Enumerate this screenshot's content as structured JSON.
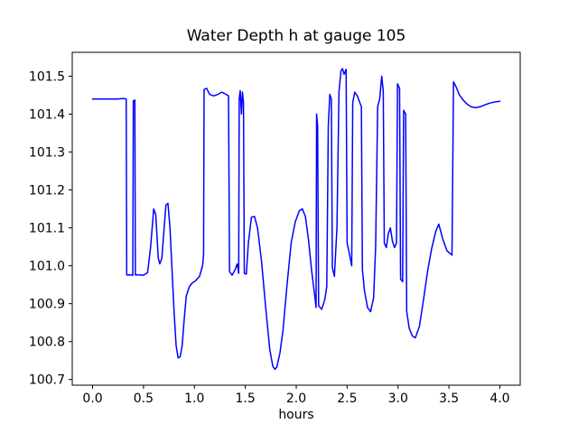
{
  "chart_data": {
    "type": "line",
    "title": "Water Depth h at gauge 105",
    "xlabel": "hours",
    "ylabel": "",
    "line_color": "#0000ff",
    "grid": false,
    "legend": null,
    "xlim": [
      -0.2,
      4.2
    ],
    "ylim": [
      100.685,
      101.563
    ],
    "xtick_values": [
      0.0,
      0.5,
      1.0,
      1.5,
      2.0,
      2.5,
      3.0,
      3.5,
      4.0
    ],
    "xtick_labels": [
      "0.0",
      "0.5",
      "1.0",
      "1.5",
      "2.0",
      "2.5",
      "3.0",
      "3.5",
      "4.0"
    ],
    "ytick_values": [
      100.7,
      100.8,
      100.9,
      101.0,
      101.1,
      101.2,
      101.3,
      101.4,
      101.5
    ],
    "ytick_labels": [
      "100.7",
      "100.8",
      "100.9",
      "101.0",
      "101.1",
      "101.2",
      "101.3",
      "101.4",
      "101.5"
    ],
    "points": [
      [
        0.0,
        101.44
      ],
      [
        0.08,
        101.44
      ],
      [
        0.16,
        101.44
      ],
      [
        0.24,
        101.44
      ],
      [
        0.3,
        101.441
      ],
      [
        0.33,
        101.44
      ],
      [
        0.335,
        100.976
      ],
      [
        0.36,
        100.976
      ],
      [
        0.395,
        100.975
      ],
      [
        0.4,
        101.435
      ],
      [
        0.415,
        101.437
      ],
      [
        0.42,
        100.976
      ],
      [
        0.46,
        100.976
      ],
      [
        0.5,
        100.975
      ],
      [
        0.54,
        100.982
      ],
      [
        0.57,
        101.05
      ],
      [
        0.6,
        101.15
      ],
      [
        0.62,
        101.135
      ],
      [
        0.645,
        101.02
      ],
      [
        0.66,
        101.005
      ],
      [
        0.68,
        101.02
      ],
      [
        0.7,
        101.09
      ],
      [
        0.72,
        101.16
      ],
      [
        0.74,
        101.165
      ],
      [
        0.76,
        101.1
      ],
      [
        0.78,
        100.99
      ],
      [
        0.8,
        100.88
      ],
      [
        0.82,
        100.79
      ],
      [
        0.84,
        100.757
      ],
      [
        0.86,
        100.76
      ],
      [
        0.88,
        100.79
      ],
      [
        0.9,
        100.86
      ],
      [
        0.92,
        100.92
      ],
      [
        0.95,
        100.945
      ],
      [
        0.98,
        100.955
      ],
      [
        1.01,
        100.96
      ],
      [
        1.05,
        100.972
      ],
      [
        1.08,
        101.0
      ],
      [
        1.09,
        101.03
      ],
      [
        1.095,
        101.465
      ],
      [
        1.12,
        101.468
      ],
      [
        1.15,
        101.452
      ],
      [
        1.19,
        101.448
      ],
      [
        1.23,
        101.452
      ],
      [
        1.27,
        101.458
      ],
      [
        1.31,
        101.452
      ],
      [
        1.335,
        101.448
      ],
      [
        1.345,
        100.985
      ],
      [
        1.37,
        100.975
      ],
      [
        1.4,
        100.99
      ],
      [
        1.42,
        101.005
      ],
      [
        1.435,
        100.98
      ],
      [
        1.44,
        101.44
      ],
      [
        1.45,
        101.462
      ],
      [
        1.462,
        101.4
      ],
      [
        1.472,
        101.458
      ],
      [
        1.482,
        101.43
      ],
      [
        1.49,
        100.98
      ],
      [
        1.51,
        100.978
      ],
      [
        1.53,
        101.06
      ],
      [
        1.56,
        101.128
      ],
      [
        1.59,
        101.13
      ],
      [
        1.62,
        101.1
      ],
      [
        1.66,
        101.01
      ],
      [
        1.7,
        100.89
      ],
      [
        1.74,
        100.78
      ],
      [
        1.77,
        100.735
      ],
      [
        1.79,
        100.727
      ],
      [
        1.81,
        100.733
      ],
      [
        1.84,
        100.77
      ],
      [
        1.87,
        100.83
      ],
      [
        1.91,
        100.95
      ],
      [
        1.95,
        101.06
      ],
      [
        1.99,
        101.115
      ],
      [
        2.03,
        101.145
      ],
      [
        2.06,
        101.15
      ],
      [
        2.09,
        101.13
      ],
      [
        2.12,
        101.07
      ],
      [
        2.15,
        100.99
      ],
      [
        2.18,
        100.925
      ],
      [
        2.195,
        100.89
      ],
      [
        2.2,
        101.4
      ],
      [
        2.21,
        101.37
      ],
      [
        2.22,
        100.895
      ],
      [
        2.25,
        100.885
      ],
      [
        2.28,
        100.91
      ],
      [
        2.3,
        100.945
      ],
      [
        2.315,
        101.37
      ],
      [
        2.33,
        101.452
      ],
      [
        2.345,
        101.44
      ],
      [
        2.355,
        100.995
      ],
      [
        2.375,
        100.972
      ],
      [
        2.4,
        101.1
      ],
      [
        2.42,
        101.46
      ],
      [
        2.44,
        101.515
      ],
      [
        2.455,
        101.52
      ],
      [
        2.47,
        101.505
      ],
      [
        2.49,
        101.518
      ],
      [
        2.5,
        101.06
      ],
      [
        2.52,
        101.035
      ],
      [
        2.545,
        101.0
      ],
      [
        2.555,
        101.43
      ],
      [
        2.575,
        101.458
      ],
      [
        2.6,
        101.448
      ],
      [
        2.625,
        101.43
      ],
      [
        2.64,
        101.42
      ],
      [
        2.65,
        100.99
      ],
      [
        2.67,
        100.935
      ],
      [
        2.7,
        100.89
      ],
      [
        2.73,
        100.879
      ],
      [
        2.76,
        100.915
      ],
      [
        2.78,
        101.05
      ],
      [
        2.8,
        101.42
      ],
      [
        2.82,
        101.44
      ],
      [
        2.84,
        101.5
      ],
      [
        2.855,
        101.46
      ],
      [
        2.865,
        101.06
      ],
      [
        2.885,
        101.048
      ],
      [
        2.905,
        101.085
      ],
      [
        2.925,
        101.1
      ],
      [
        2.945,
        101.065
      ],
      [
        2.965,
        101.048
      ],
      [
        2.985,
        101.06
      ],
      [
        2.995,
        101.48
      ],
      [
        3.015,
        101.468
      ],
      [
        3.025,
        100.965
      ],
      [
        3.045,
        100.958
      ],
      [
        3.055,
        101.41
      ],
      [
        3.075,
        101.4
      ],
      [
        3.085,
        100.88
      ],
      [
        3.11,
        100.835
      ],
      [
        3.14,
        100.815
      ],
      [
        3.17,
        100.81
      ],
      [
        3.21,
        100.84
      ],
      [
        3.25,
        100.91
      ],
      [
        3.29,
        100.985
      ],
      [
        3.33,
        101.045
      ],
      [
        3.37,
        101.09
      ],
      [
        3.4,
        101.11
      ],
      [
        3.44,
        101.07
      ],
      [
        3.48,
        101.04
      ],
      [
        3.53,
        101.028
      ],
      [
        3.545,
        101.485
      ],
      [
        3.57,
        101.472
      ],
      [
        3.6,
        101.452
      ],
      [
        3.64,
        101.437
      ],
      [
        3.68,
        101.426
      ],
      [
        3.72,
        101.419
      ],
      [
        3.76,
        101.417
      ],
      [
        3.8,
        101.419
      ],
      [
        3.85,
        101.424
      ],
      [
        3.9,
        101.429
      ],
      [
        3.95,
        101.432
      ],
      [
        4.0,
        101.434
      ]
    ]
  }
}
